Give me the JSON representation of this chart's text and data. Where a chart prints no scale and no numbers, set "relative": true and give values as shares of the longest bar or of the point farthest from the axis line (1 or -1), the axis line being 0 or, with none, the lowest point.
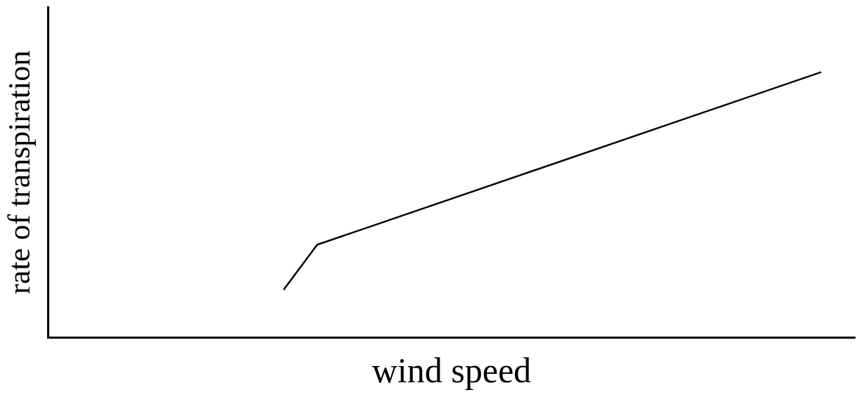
{
  "chart_data": {
    "type": "line",
    "xlabel": "wind speed",
    "ylabel": "rate of transpiration",
    "relative": true,
    "marker": "none",
    "grid": false,
    "legend": false,
    "categories": [
      null,
      null,
      null,
      null,
      null,
      null,
      null,
      null,
      null,
      null,
      null,
      null,
      null,
      null,
      null,
      null,
      null,
      null,
      null,
      null,
      null,
      null,
      null,
      null,
      null
    ],
    "series": [
      {
        "color": "#000000",
        "values": [
          null,
          null,
          null,
          null,
          null,
          null,
          null,
          0.18,
          0.35,
          null,
          null,
          null,
          null,
          null,
          null,
          null,
          null,
          null,
          null,
          null,
          null,
          null,
          null,
          1,
          null
        ]
      }
    ]
  }
}
